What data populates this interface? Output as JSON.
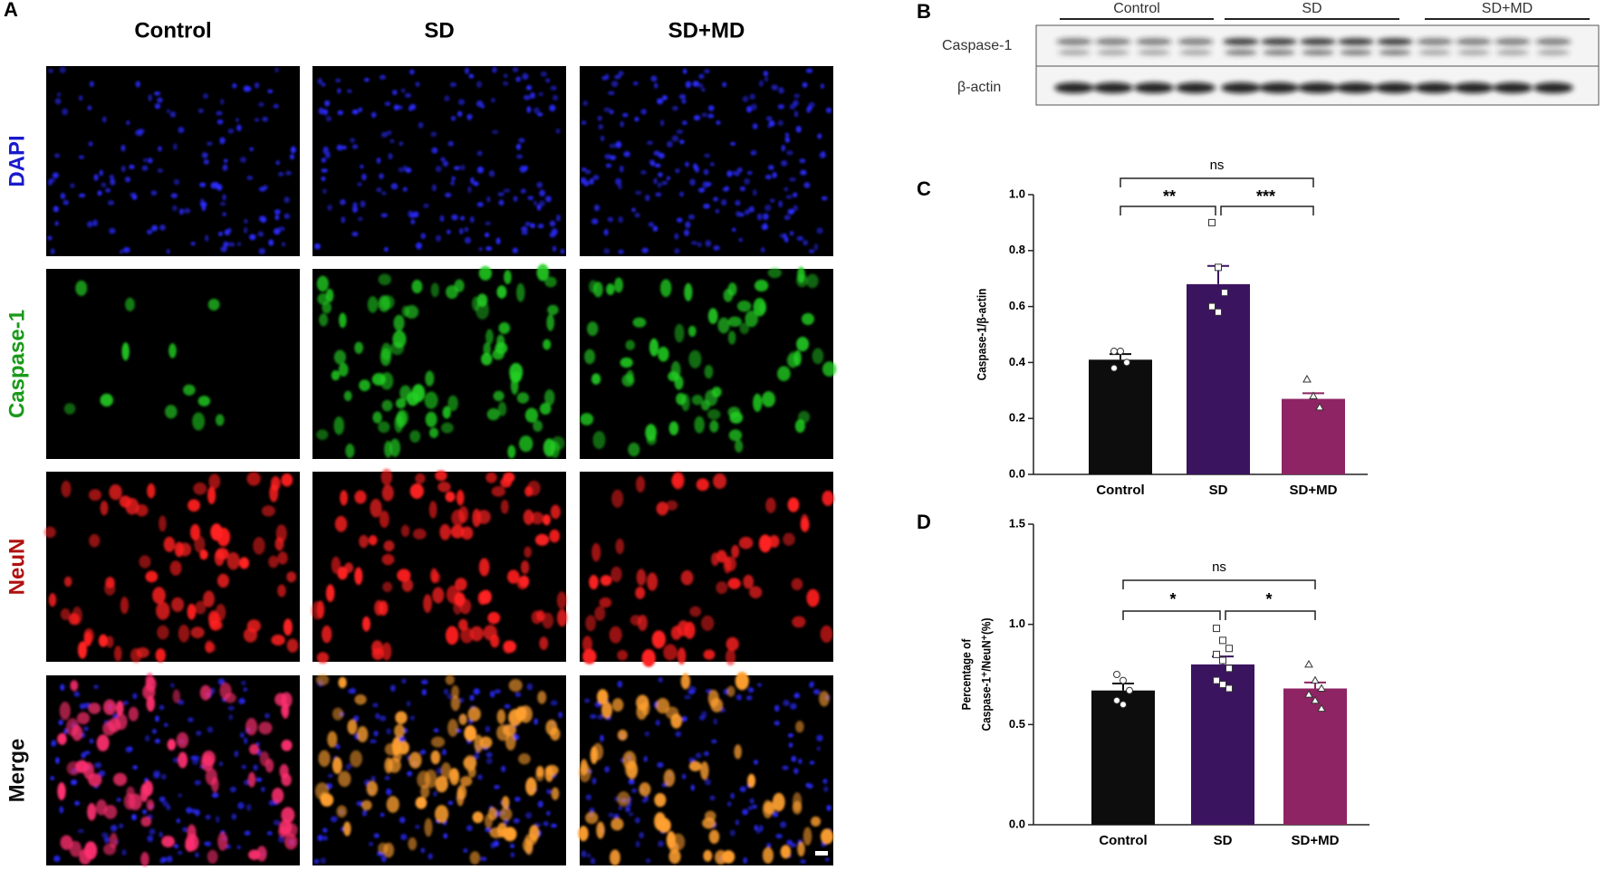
{
  "panels": {
    "a": "A",
    "b": "B",
    "c": "C",
    "d": "D"
  },
  "panel_a": {
    "columns": [
      "Control",
      "SD",
      "SD+MD"
    ],
    "rows": [
      "DAPI",
      "Caspase-1",
      "NeuN",
      "Merge"
    ]
  },
  "panel_b": {
    "groups": [
      "Control",
      "SD",
      "SD+MD"
    ],
    "bands": [
      "Caspase-1",
      "β-actin"
    ]
  },
  "chart_data": [
    {
      "type": "bar",
      "ylabel": [
        "Caspase-1/β-actin"
      ],
      "categories": [
        "Control",
        "SD",
        "SD+MD"
      ],
      "colors": [
        "#0d0d0d",
        "#3b1460",
        "#8e2463"
      ],
      "values": [
        0.41,
        0.68,
        0.27
      ],
      "errors": [
        0.02,
        0.065,
        0.02
      ],
      "points": [
        [
          0.44,
          0.44,
          0.4,
          0.38
        ],
        [
          0.9,
          0.74,
          0.65,
          0.6,
          0.58
        ],
        [
          0.34,
          0.28,
          0.24
        ]
      ],
      "ylim": [
        0,
        1.0
      ],
      "yticks": [
        {
          "value": 0,
          "label": "0.0"
        },
        0.2,
        0.4,
        0.6,
        0.8,
        {
          "value": 1,
          "label": "1.0"
        }
      ],
      "annotations": [
        "ns",
        "**",
        "***"
      ]
    },
    {
      "type": "bar",
      "ylabel": [
        "Percentage of",
        "Caspase-1⁺/NeuN⁺(%)"
      ],
      "categories": [
        "Control",
        "SD",
        "SD+MD"
      ],
      "colors": [
        "#0d0d0d",
        "#3b1460",
        "#8e2463"
      ],
      "values": [
        0.67,
        0.8,
        0.68
      ],
      "errors": [
        0.035,
        0.04,
        0.03
      ],
      "points": [
        [
          0.75,
          0.72,
          0.67,
          0.62,
          0.6
        ],
        [
          0.98,
          0.92,
          0.88,
          0.85,
          0.82,
          0.78,
          0.72,
          0.7,
          0.68
        ],
        [
          0.8,
          0.72,
          0.68,
          0.65,
          0.62,
          0.58
        ]
      ],
      "ylim": [
        0,
        1.5
      ],
      "yticks": [
        {
          "value": 0,
          "label": "0.0"
        },
        0.5,
        {
          "value": 1,
          "label": "1.0"
        },
        1.5
      ],
      "annotations": [
        "ns",
        "*",
        "*"
      ]
    }
  ]
}
